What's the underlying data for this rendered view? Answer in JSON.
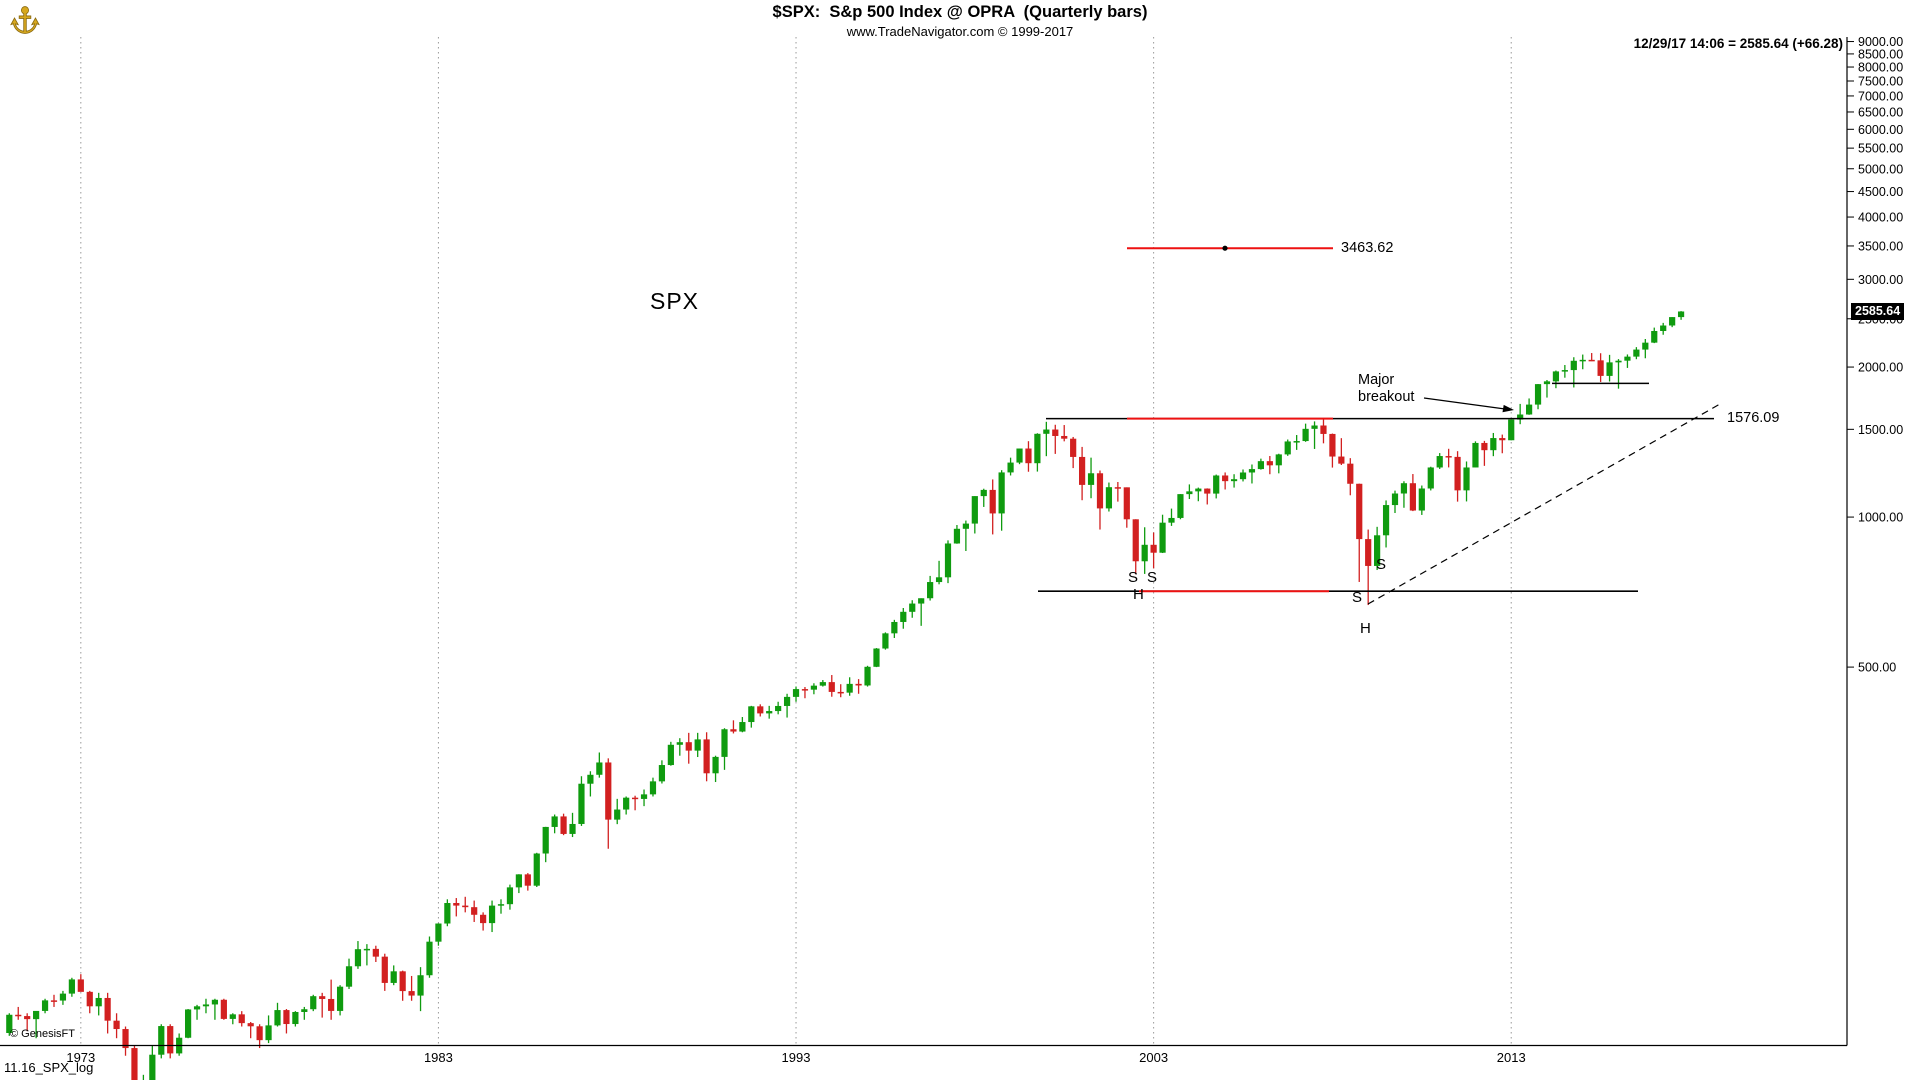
{
  "header": {
    "title": "$SPX:  S&p 500 Index @ OPRA  (Quarterly bars)",
    "subtitle": "www.TradeNavigator.com © 1999-2017",
    "quote": "12/29/17 14:06 = 2585.64 (+66.28)"
  },
  "footer": {
    "copyright": "© GenesisFT",
    "chart_id": "11.16_SPX_log"
  },
  "price_tag": "2585.64",
  "colors": {
    "up": "#0f9b0f",
    "down": "#d22020",
    "red_line": "#ee1111",
    "grid": "#9a9a9a",
    "axis": "#000000"
  },
  "y_axis": {
    "ticks": [
      9000,
      8500,
      8000,
      7500,
      7000,
      6500,
      6000,
      5500,
      5000,
      4500,
      4000,
      3500,
      3000,
      2500,
      2000,
      1500,
      1000,
      500
    ]
  },
  "x_axis": {
    "ticks": [
      {
        "label": "1973",
        "bar_index": 8
      },
      {
        "label": "1983",
        "bar_index": 48
      },
      {
        "label": "1993",
        "bar_index": 88
      },
      {
        "label": "2003",
        "bar_index": 128
      },
      {
        "label": "2013",
        "bar_index": 168
      }
    ]
  },
  "chart_data": {
    "type": "candlestick",
    "symbol": "$SPX",
    "name": "S&p 500 Index @ OPRA",
    "timeframe": "Quarterly",
    "scale": "log",
    "start_quarter": "1971Q1",
    "end_quarter": "2017Q4",
    "last": {
      "date": "12/29/17",
      "time": "14:06",
      "price": 2585.64,
      "change": "+66.28"
    },
    "annotations": {
      "symbol_label": "SPX",
      "upper_target": {
        "label": "3463.62",
        "price": 3463.62
      },
      "breakout_level": {
        "label": "1576.09",
        "price": 1576.09
      },
      "neckline_price": 710,
      "consolidation_support_price": 1855,
      "major_breakout_label": "Major breakout",
      "sh_letters": [
        "S",
        "S",
        "H",
        "S",
        "S",
        "H"
      ]
    },
    "bars": [
      [
        92.2,
        101,
        91,
        100.3
      ],
      [
        100.3,
        104,
        98,
        99.7
      ],
      [
        99.7,
        101,
        93,
        98.3
      ],
      [
        98.3,
        102,
        90,
        102.1
      ],
      [
        102.1,
        108,
        101,
        107.2
      ],
      [
        107.2,
        110,
        104,
        107.1
      ],
      [
        107.1,
        112,
        105,
        110.6
      ],
      [
        110.6,
        119,
        109,
        118.1
      ],
      [
        118.1,
        121,
        112,
        111.5
      ],
      [
        111.5,
        112,
        101,
        104.3
      ],
      [
        104.3,
        111,
        100,
        108.4
      ],
      [
        108.4,
        111,
        92,
        97.6
      ],
      [
        97.6,
        101,
        90,
        93.9
      ],
      [
        93.9,
        95,
        83,
        86
      ],
      [
        86,
        87,
        62,
        63.5
      ],
      [
        63.5,
        76,
        62,
        68.6
      ],
      [
        68.6,
        87,
        68,
        83.4
      ],
      [
        83.4,
        96,
        82,
        95.2
      ],
      [
        95.2,
        96,
        82,
        83.9
      ],
      [
        83.9,
        92,
        83,
        90.2
      ],
      [
        90.2,
        103,
        90,
        102.8
      ],
      [
        102.8,
        105,
        98,
        104.3
      ],
      [
        104.3,
        108,
        101,
        105.2
      ],
      [
        105.2,
        108,
        98,
        107.5
      ],
      [
        107.5,
        108,
        98,
        98.4
      ],
      [
        98.4,
        101,
        96,
        100.5
      ],
      [
        100.5,
        102,
        95,
        96.5
      ],
      [
        96.5,
        97,
        90,
        95.1
      ],
      [
        95.1,
        96,
        86,
        89.2
      ],
      [
        89.2,
        100,
        88,
        95.5
      ],
      [
        95.5,
        106,
        95,
        102.5
      ],
      [
        102.5,
        103,
        92,
        96.1
      ],
      [
        96.1,
        102,
        95,
        101.6
      ],
      [
        101.6,
        104,
        98,
        102.9
      ],
      [
        102.9,
        110,
        102,
        109.3
      ],
      [
        109.3,
        111,
        99,
        107.9
      ],
      [
        107.9,
        118,
        98,
        102.1
      ],
      [
        102.1,
        115,
        100,
        114.2
      ],
      [
        114.2,
        130,
        113,
        125.5
      ],
      [
        125.5,
        141,
        124,
        135.8
      ],
      [
        135.8,
        139,
        126,
        136
      ],
      [
        136,
        138,
        128,
        131.2
      ],
      [
        131.2,
        133,
        112,
        116.2
      ],
      [
        116.2,
        126,
        115,
        122.6
      ],
      [
        122.6,
        123,
        107,
        111.9
      ],
      [
        111.9,
        120,
        107,
        109.6
      ],
      [
        109.6,
        125,
        102,
        120.4
      ],
      [
        120.4,
        144,
        119,
        140.6
      ],
      [
        140.6,
        153,
        138,
        152.9
      ],
      [
        152.9,
        171,
        151,
        168.1
      ],
      [
        168.1,
        172,
        158,
        166.1
      ],
      [
        166.1,
        173,
        161,
        164.9
      ],
      [
        164.9,
        170,
        154,
        159.2
      ],
      [
        159.2,
        161,
        148,
        153.2
      ],
      [
        153.2,
        170,
        147,
        166.1
      ],
      [
        166.1,
        171,
        160,
        167.2
      ],
      [
        167.2,
        183,
        163,
        180.7
      ],
      [
        180.7,
        192,
        176,
        191.9
      ],
      [
        191.9,
        193,
        178,
        182.1
      ],
      [
        182.1,
        212,
        181,
        211.3
      ],
      [
        211.3,
        239,
        203,
        238.9
      ],
      [
        238.9,
        253,
        232,
        250.8
      ],
      [
        250.8,
        254,
        230,
        231.3
      ],
      [
        231.3,
        255,
        228,
        242.2
      ],
      [
        242.2,
        302,
        240,
        291.7
      ],
      [
        291.7,
        309,
        275,
        304
      ],
      [
        304,
        337,
        300,
        321.8
      ],
      [
        321.8,
        328,
        216,
        247.1
      ],
      [
        247.1,
        272,
        242,
        258.9
      ],
      [
        258.9,
        275,
        253,
        273.5
      ],
      [
        273.5,
        276,
        258,
        271.9
      ],
      [
        271.9,
        284,
        263,
        277.7
      ],
      [
        277.7,
        300,
        275,
        294.9
      ],
      [
        294.9,
        325,
        292,
        318
      ],
      [
        318,
        354,
        317,
        349.2
      ],
      [
        349.2,
        360,
        332,
        353.4
      ],
      [
        353.4,
        369,
        320,
        339.9
      ],
      [
        339.9,
        369,
        330,
        358
      ],
      [
        358,
        370,
        295,
        306.1
      ],
      [
        306.1,
        332,
        294,
        330.2
      ],
      [
        330.2,
        377,
        311,
        375.2
      ],
      [
        375.2,
        391,
        368,
        371.2
      ],
      [
        371.2,
        397,
        370,
        387.9
      ],
      [
        387.9,
        418,
        378,
        417.1
      ],
      [
        417.1,
        421,
        398,
        403.7
      ],
      [
        403.7,
        418,
        394,
        408.1
      ],
      [
        408.1,
        426,
        402,
        417.8
      ],
      [
        417.8,
        442,
        396,
        435.7
      ],
      [
        435.7,
        457,
        426,
        451.7
      ],
      [
        451.7,
        456,
        433,
        450.5
      ],
      [
        450.5,
        464,
        441,
        458.9
      ],
      [
        458.9,
        471,
        457,
        466.5
      ],
      [
        466.5,
        482,
        436,
        445.8
      ],
      [
        445.8,
        462,
        435,
        444.3
      ],
      [
        444.3,
        477,
        438,
        462.7
      ],
      [
        462.7,
        473,
        442,
        459.3
      ],
      [
        459.3,
        503,
        457,
        500.7
      ],
      [
        500.7,
        546,
        500,
        544.8
      ],
      [
        544.8,
        587,
        542,
        584.4
      ],
      [
        584.4,
        622,
        572,
        615.9
      ],
      [
        615.9,
        657,
        597,
        645.5
      ],
      [
        645.5,
        681,
        628,
        670.6
      ],
      [
        670.6,
        687,
        605,
        687.3
      ],
      [
        687.3,
        762,
        680,
        740.7
      ],
      [
        740.7,
        817,
        733,
        757.1
      ],
      [
        757.1,
        898,
        737,
        885.1
      ],
      [
        885.1,
        964,
        884,
        947.3
      ],
      [
        947.3,
        984,
        855,
        970.4
      ],
      [
        970.4,
        1101,
        927,
        1101.8
      ],
      [
        1101.8,
        1140,
        1048,
        1133.8
      ],
      [
        1133.8,
        1190,
        923,
        1017
      ],
      [
        1017,
        1242,
        939,
        1229.2
      ],
      [
        1229.2,
        1316,
        1212,
        1286.4
      ],
      [
        1286.4,
        1372,
        1277,
        1372.7
      ],
      [
        1372.7,
        1420,
        1233,
        1282.7
      ],
      [
        1282.7,
        1473,
        1234,
        1469.3
      ],
      [
        1469.3,
        1553,
        1325,
        1498.6
      ],
      [
        1498.6,
        1532,
        1339,
        1454.6
      ],
      [
        1454.6,
        1530,
        1419,
        1436.5
      ],
      [
        1436.5,
        1448,
        1254,
        1320.3
      ],
      [
        1320.3,
        1383,
        1081,
        1160.3
      ],
      [
        1160.3,
        1316,
        1091,
        1224.4
      ],
      [
        1224.4,
        1240,
        944,
        1040.9
      ],
      [
        1040.9,
        1173,
        1026,
        1148.1
      ],
      [
        1148.1,
        1176,
        1074,
        1147.4
      ],
      [
        1147.4,
        1147,
        952,
        989.8
      ],
      [
        989.8,
        990,
        768,
        815.3
      ],
      [
        815.3,
        954,
        769,
        879.8
      ],
      [
        879.8,
        931,
        789,
        848.2
      ],
      [
        848.2,
        1011,
        847,
        974.5
      ],
      [
        974.5,
        1040,
        960,
        996
      ],
      [
        996,
        1112,
        990,
        1111.9
      ],
      [
        1111.9,
        1163,
        1087,
        1126.2
      ],
      [
        1126.2,
        1146,
        1076,
        1140.8
      ],
      [
        1140.8,
        1142,
        1060,
        1114.6
      ],
      [
        1114.6,
        1217,
        1090,
        1211.9
      ],
      [
        1211.9,
        1229,
        1136,
        1180.6
      ],
      [
        1180.6,
        1219,
        1146,
        1191.3
      ],
      [
        1191.3,
        1246,
        1179,
        1228.8
      ],
      [
        1228.8,
        1275,
        1168,
        1248.3
      ],
      [
        1248.3,
        1310,
        1245,
        1294.9
      ],
      [
        1294.9,
        1326,
        1219,
        1270.2
      ],
      [
        1270.2,
        1340,
        1224,
        1335.9
      ],
      [
        1335.9,
        1431,
        1327,
        1418.3
      ],
      [
        1418.3,
        1461,
        1364,
        1420.9
      ],
      [
        1420.9,
        1540,
        1416,
        1503.4
      ],
      [
        1503.4,
        1556,
        1370,
        1526.8
      ],
      [
        1526.8,
        1576,
        1406,
        1468.4
      ],
      [
        1468.4,
        1471,
        1257,
        1322.7
      ],
      [
        1322.7,
        1440,
        1272,
        1280
      ],
      [
        1280,
        1313,
        1106,
        1166.4
      ],
      [
        1166.4,
        1167,
        741,
        903.3
      ],
      [
        903.3,
        944,
        666,
        797.9
      ],
      [
        797.9,
        956,
        783,
        919.3
      ],
      [
        919.3,
        1080,
        869,
        1057.1
      ],
      [
        1057.1,
        1130,
        1019,
        1115.1
      ],
      [
        1115.1,
        1180,
        1044,
        1169.4
      ],
      [
        1169.4,
        1220,
        1028,
        1030.7
      ],
      [
        1030.7,
        1157,
        1010,
        1141.2
      ],
      [
        1141.2,
        1262,
        1131,
        1257.6
      ],
      [
        1257.6,
        1344,
        1249,
        1325.8
      ],
      [
        1325.8,
        1371,
        1258,
        1320.6
      ],
      [
        1320.6,
        1356,
        1074,
        1131.4
      ],
      [
        1131.4,
        1293,
        1075,
        1257.6
      ],
      [
        1257.6,
        1419,
        1258,
        1408.5
      ],
      [
        1408.5,
        1422,
        1267,
        1362.2
      ],
      [
        1362.2,
        1475,
        1325,
        1440.7
      ],
      [
        1440.7,
        1464,
        1343,
        1426.2
      ],
      [
        1426.2,
        1570,
        1426,
        1569.2
      ],
      [
        1569.2,
        1687,
        1536,
        1606.3
      ],
      [
        1606.3,
        1730,
        1604,
        1681.6
      ],
      [
        1681.6,
        1849,
        1646,
        1848.4
      ],
      [
        1848.4,
        1884,
        1737,
        1872.3
      ],
      [
        1872.3,
        1968,
        1814,
        1960.2
      ],
      [
        1960.2,
        2019,
        1904,
        1972.3
      ],
      [
        1972.3,
        2093,
        1820,
        2058.9
      ],
      [
        2058.9,
        2119,
        1980,
        2067.9
      ],
      [
        2067.9,
        2134,
        2056,
        2063.1
      ],
      [
        2063.1,
        2132,
        1867,
        1920
      ],
      [
        1920,
        2116,
        1871,
        2043.9
      ],
      [
        2043.9,
        2075,
        1810,
        2059.7
      ],
      [
        2059.7,
        2120,
        1992,
        2098.9
      ],
      [
        2098.9,
        2193,
        2074,
        2168.3
      ],
      [
        2168.3,
        2277,
        2083,
        2238.8
      ],
      [
        2238.8,
        2400,
        2234,
        2362.7
      ],
      [
        2362.7,
        2453,
        2322,
        2423.4
      ],
      [
        2423.4,
        2519,
        2405,
        2519.4
      ],
      [
        2519.4,
        2590,
        2488,
        2585.64
      ]
    ]
  }
}
